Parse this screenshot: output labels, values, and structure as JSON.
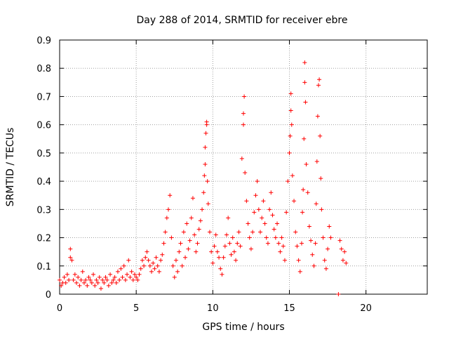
{
  "chart_data": {
    "type": "scatter",
    "title": "Day 288 of 2014, SRMTID for receiver ebre",
    "xlabel": "GPS time / hours",
    "ylabel": "SRMTID / TECUs",
    "xlim": [
      0,
      24
    ],
    "ylim": [
      0,
      0.9
    ],
    "xticks": [
      0,
      5,
      10,
      15,
      20
    ],
    "yticks": [
      0,
      0.1,
      0.2,
      0.3,
      0.4,
      0.5,
      0.6,
      0.7,
      0.8,
      0.9
    ],
    "ytick_labels": [
      "0",
      "0.1",
      "0.2",
      "0.3",
      "0.4",
      "0.5",
      "0.6",
      "0.7",
      "0.8",
      "0.9"
    ],
    "xtick_labels": [
      "0",
      "5",
      "10",
      "15",
      "20"
    ],
    "grid": true,
    "marker": "+",
    "color": "#ff0000",
    "series": [
      {
        "name": "SRMTID",
        "points": [
          [
            0.0,
            0.05
          ],
          [
            0.1,
            0.03
          ],
          [
            0.2,
            0.04
          ],
          [
            0.3,
            0.06
          ],
          [
            0.4,
            0.04
          ],
          [
            0.5,
            0.07
          ],
          [
            0.6,
            0.05
          ],
          [
            0.7,
            0.13
          ],
          [
            0.7,
            0.16
          ],
          [
            0.8,
            0.12
          ],
          [
            0.9,
            0.05
          ],
          [
            1.0,
            0.07
          ],
          [
            1.1,
            0.04
          ],
          [
            1.2,
            0.06
          ],
          [
            1.3,
            0.03
          ],
          [
            1.4,
            0.05
          ],
          [
            1.5,
            0.08
          ],
          [
            1.6,
            0.04
          ],
          [
            1.7,
            0.05
          ],
          [
            1.8,
            0.03
          ],
          [
            1.9,
            0.06
          ],
          [
            2.0,
            0.05
          ],
          [
            2.1,
            0.04
          ],
          [
            2.2,
            0.07
          ],
          [
            2.3,
            0.03
          ],
          [
            2.4,
            0.05
          ],
          [
            2.5,
            0.04
          ],
          [
            2.6,
            0.06
          ],
          [
            2.7,
            0.02
          ],
          [
            2.8,
            0.05
          ],
          [
            2.9,
            0.04
          ],
          [
            3.0,
            0.06
          ],
          [
            3.1,
            0.05
          ],
          [
            3.2,
            0.03
          ],
          [
            3.3,
            0.07
          ],
          [
            3.4,
            0.04
          ],
          [
            3.5,
            0.05
          ],
          [
            3.6,
            0.06
          ],
          [
            3.7,
            0.04
          ],
          [
            3.8,
            0.08
          ],
          [
            3.9,
            0.05
          ],
          [
            4.0,
            0.09
          ],
          [
            4.1,
            0.06
          ],
          [
            4.2,
            0.1
          ],
          [
            4.3,
            0.05
          ],
          [
            4.4,
            0.07
          ],
          [
            4.5,
            0.12
          ],
          [
            4.6,
            0.06
          ],
          [
            4.7,
            0.08
          ],
          [
            4.8,
            0.05
          ],
          [
            4.9,
            0.07
          ],
          [
            5.0,
            0.06
          ],
          [
            5.1,
            0.05
          ],
          [
            5.2,
            0.07
          ],
          [
            5.3,
            0.09
          ],
          [
            5.4,
            0.12
          ],
          [
            5.5,
            0.1
          ],
          [
            5.6,
            0.13
          ],
          [
            5.7,
            0.15
          ],
          [
            5.8,
            0.12
          ],
          [
            5.9,
            0.1
          ],
          [
            6.0,
            0.08
          ],
          [
            6.1,
            0.11
          ],
          [
            6.2,
            0.09
          ],
          [
            6.3,
            0.13
          ],
          [
            6.4,
            0.1
          ],
          [
            6.5,
            0.08
          ],
          [
            6.6,
            0.12
          ],
          [
            6.7,
            0.14
          ],
          [
            6.8,
            0.18
          ],
          [
            6.9,
            0.22
          ],
          [
            7.0,
            0.27
          ],
          [
            7.1,
            0.3
          ],
          [
            7.2,
            0.35
          ],
          [
            7.3,
            0.2
          ],
          [
            7.4,
            0.1
          ],
          [
            7.5,
            0.06
          ],
          [
            7.6,
            0.12
          ],
          [
            7.7,
            0.08
          ],
          [
            7.8,
            0.15
          ],
          [
            7.9,
            0.18
          ],
          [
            8.0,
            0.1
          ],
          [
            8.1,
            0.22
          ],
          [
            8.2,
            0.13
          ],
          [
            8.3,
            0.25
          ],
          [
            8.4,
            0.16
          ],
          [
            8.5,
            0.19
          ],
          [
            8.6,
            0.27
          ],
          [
            8.7,
            0.34
          ],
          [
            8.8,
            0.21
          ],
          [
            8.9,
            0.15
          ],
          [
            9.0,
            0.18
          ],
          [
            9.1,
            0.23
          ],
          [
            9.2,
            0.26
          ],
          [
            9.3,
            0.3
          ],
          [
            9.4,
            0.36
          ],
          [
            9.45,
            0.42
          ],
          [
            9.5,
            0.46
          ],
          [
            9.5,
            0.52
          ],
          [
            9.55,
            0.57
          ],
          [
            9.6,
            0.6
          ],
          [
            9.6,
            0.61
          ],
          [
            9.65,
            0.4
          ],
          [
            9.7,
            0.32
          ],
          [
            9.8,
            0.22
          ],
          [
            9.9,
            0.15
          ],
          [
            10.0,
            0.11
          ],
          [
            10.1,
            0.17
          ],
          [
            10.2,
            0.21
          ],
          [
            10.3,
            0.15
          ],
          [
            10.4,
            0.13
          ],
          [
            10.5,
            0.09
          ],
          [
            10.6,
            0.07
          ],
          [
            10.7,
            0.13
          ],
          [
            10.8,
            0.17
          ],
          [
            10.9,
            0.21
          ],
          [
            11.0,
            0.27
          ],
          [
            11.1,
            0.18
          ],
          [
            11.2,
            0.14
          ],
          [
            11.3,
            0.2
          ],
          [
            11.4,
            0.15
          ],
          [
            11.5,
            0.12
          ],
          [
            11.6,
            0.18
          ],
          [
            11.7,
            0.22
          ],
          [
            11.8,
            0.17
          ],
          [
            11.9,
            0.48
          ],
          [
            12.0,
            0.6
          ],
          [
            12.0,
            0.64
          ],
          [
            12.05,
            0.7
          ],
          [
            12.1,
            0.43
          ],
          [
            12.2,
            0.33
          ],
          [
            12.3,
            0.25
          ],
          [
            12.4,
            0.2
          ],
          [
            12.5,
            0.16
          ],
          [
            12.6,
            0.22
          ],
          [
            12.7,
            0.29
          ],
          [
            12.8,
            0.35
          ],
          [
            12.9,
            0.4
          ],
          [
            13.0,
            0.3
          ],
          [
            13.1,
            0.22
          ],
          [
            13.2,
            0.27
          ],
          [
            13.3,
            0.33
          ],
          [
            13.4,
            0.25
          ],
          [
            13.5,
            0.2
          ],
          [
            13.6,
            0.18
          ],
          [
            13.7,
            0.3
          ],
          [
            13.8,
            0.36
          ],
          [
            13.9,
            0.28
          ],
          [
            14.0,
            0.23
          ],
          [
            14.1,
            0.2
          ],
          [
            14.2,
            0.25
          ],
          [
            14.3,
            0.18
          ],
          [
            14.4,
            0.15
          ],
          [
            14.5,
            0.2
          ],
          [
            14.6,
            0.17
          ],
          [
            14.7,
            0.12
          ],
          [
            14.8,
            0.29
          ],
          [
            14.9,
            0.4
          ],
          [
            15.0,
            0.5
          ],
          [
            15.05,
            0.56
          ],
          [
            15.1,
            0.65
          ],
          [
            15.1,
            0.71
          ],
          [
            15.15,
            0.6
          ],
          [
            15.2,
            0.42
          ],
          [
            15.3,
            0.33
          ],
          [
            15.4,
            0.22
          ],
          [
            15.5,
            0.17
          ],
          [
            15.6,
            0.12
          ],
          [
            15.7,
            0.08
          ],
          [
            15.8,
            0.18
          ],
          [
            15.85,
            0.29
          ],
          [
            15.9,
            0.37
          ],
          [
            15.95,
            0.55
          ],
          [
            16.0,
            0.75
          ],
          [
            16.0,
            0.82
          ],
          [
            16.05,
            0.68
          ],
          [
            16.1,
            0.46
          ],
          [
            16.2,
            0.36
          ],
          [
            16.3,
            0.24
          ],
          [
            16.4,
            0.19
          ],
          [
            16.5,
            0.14
          ],
          [
            16.6,
            0.1
          ],
          [
            16.7,
            0.18
          ],
          [
            16.75,
            0.32
          ],
          [
            16.8,
            0.47
          ],
          [
            16.85,
            0.63
          ],
          [
            16.9,
            0.74
          ],
          [
            16.95,
            0.76
          ],
          [
            17.0,
            0.56
          ],
          [
            17.05,
            0.41
          ],
          [
            17.1,
            0.3
          ],
          [
            17.2,
            0.2
          ],
          [
            17.3,
            0.12
          ],
          [
            17.4,
            0.09
          ],
          [
            17.5,
            0.16
          ],
          [
            17.6,
            0.24
          ],
          [
            17.7,
            0.2
          ],
          [
            18.2,
            0.0
          ],
          [
            18.3,
            0.19
          ],
          [
            18.4,
            0.16
          ],
          [
            18.5,
            0.12
          ],
          [
            18.6,
            0.15
          ],
          [
            18.7,
            0.11
          ]
        ]
      }
    ]
  }
}
